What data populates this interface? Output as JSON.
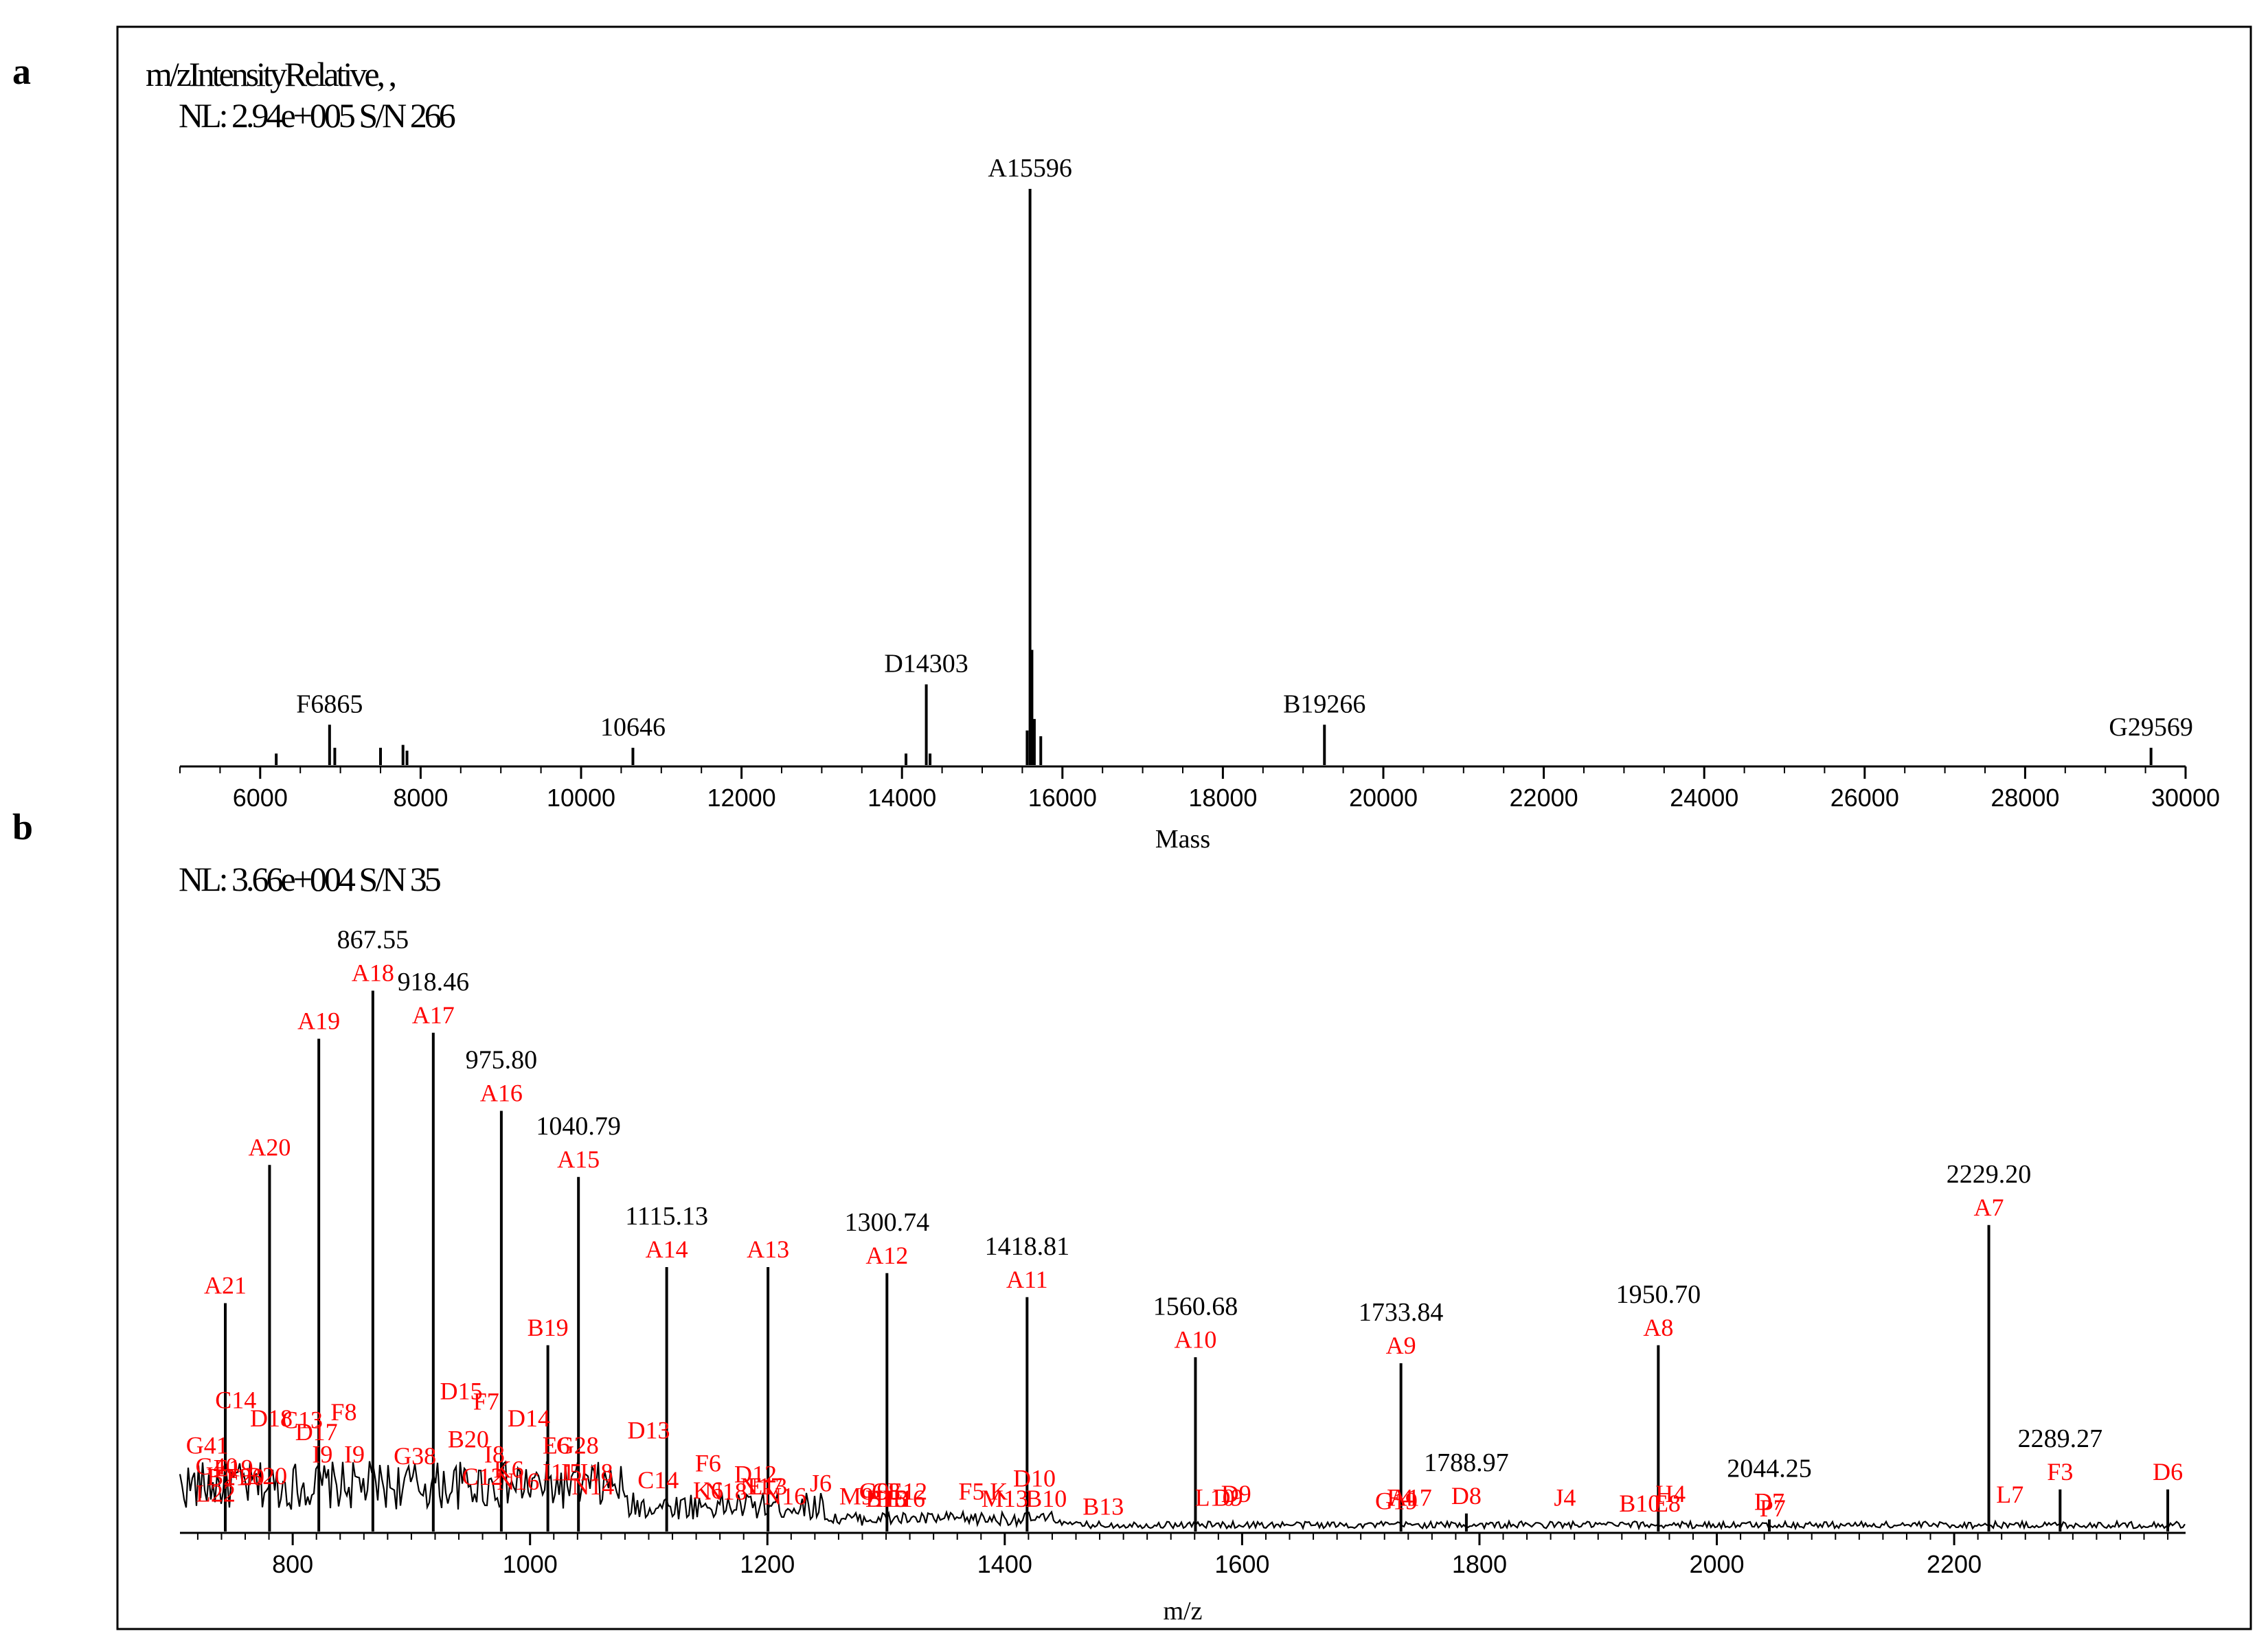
{
  "panel_letters": {
    "a": "a",
    "b": "b"
  },
  "chart_data": [
    {
      "type": "spectrum",
      "panel": "a",
      "header_line1": "m/zIntensityRelative, ,",
      "header_line2": "NL: 2.94e+005  S/N 266",
      "xlabel": "Mass",
      "xlim": [
        5000,
        30000
      ],
      "ylim": [
        0,
        100
      ],
      "x_ticks": [
        6000,
        8000,
        10000,
        12000,
        14000,
        16000,
        18000,
        20000,
        22000,
        24000,
        26000,
        28000,
        30000
      ],
      "peaks": [
        {
          "x": 6200,
          "y": 2
        },
        {
          "x": 6865,
          "y": 7,
          "label": "F6865"
        },
        {
          "x": 6930,
          "y": 3
        },
        {
          "x": 7500,
          "y": 3
        },
        {
          "x": 7780,
          "y": 3.5
        },
        {
          "x": 7830,
          "y": 2.5
        },
        {
          "x": 10646,
          "y": 3,
          "label": "10646"
        },
        {
          "x": 14050,
          "y": 2
        },
        {
          "x": 14303,
          "y": 14,
          "label": "D14303"
        },
        {
          "x": 14350,
          "y": 2
        },
        {
          "x": 15560,
          "y": 6
        },
        {
          "x": 15596,
          "y": 100,
          "label": "A15596"
        },
        {
          "x": 15620,
          "y": 20
        },
        {
          "x": 15650,
          "y": 8
        },
        {
          "x": 15730,
          "y": 5
        },
        {
          "x": 19266,
          "y": 7,
          "label": "B19266"
        },
        {
          "x": 29569,
          "y": 3,
          "label": "G29569"
        }
      ]
    },
    {
      "type": "spectrum",
      "panel": "b",
      "header_line1": "NL: 3.66e+004  S/N 35",
      "xlabel": "m/z",
      "xlim": [
        705,
        2395
      ],
      "ylim": [
        0,
        100
      ],
      "x_ticks": [
        800,
        1000,
        1200,
        1400,
        1600,
        1800,
        2000,
        2200
      ],
      "peaks": [
        {
          "x": 743.2,
          "y": 38,
          "mz": "",
          "ion": "A21"
        },
        {
          "x": 780.5,
          "y": 61,
          "mz": "",
          "ion": "A20"
        },
        {
          "x": 822.0,
          "y": 82,
          "mz": "",
          "ion": "A19"
        },
        {
          "x": 867.55,
          "y": 90,
          "mz": "867.55",
          "ion": "A18"
        },
        {
          "x": 918.46,
          "y": 83,
          "mz": "918.46",
          "ion": "A17"
        },
        {
          "x": 975.8,
          "y": 70,
          "mz": "975.80",
          "ion": "A16"
        },
        {
          "x": 1040.79,
          "y": 59,
          "mz": "1040.79",
          "ion": "A15"
        },
        {
          "x": 1115.13,
          "y": 44,
          "mz": "1115.13",
          "ion": "A14"
        },
        {
          "x": 1200.5,
          "y": 44,
          "mz": "",
          "ion": "A13"
        },
        {
          "x": 1300.74,
          "y": 43,
          "mz": "1300.74",
          "ion": "A12"
        },
        {
          "x": 1418.81,
          "y": 39,
          "mz": "1418.81",
          "ion": "A11"
        },
        {
          "x": 1560.68,
          "y": 29,
          "mz": "1560.68",
          "ion": "A10"
        },
        {
          "x": 1733.84,
          "y": 28,
          "mz": "1733.84",
          "ion": "A9"
        },
        {
          "x": 1950.7,
          "y": 31,
          "mz": "1950.70",
          "ion": "A8"
        },
        {
          "x": 2229.2,
          "y": 51,
          "mz": "2229.20",
          "ion": "A7"
        },
        {
          "x": 1015.0,
          "y": 31,
          "mz": "",
          "ion": "B19"
        },
        {
          "x": 1788.97,
          "y": 3,
          "mz": "1788.97",
          "ion": "D8"
        },
        {
          "x": 2044.25,
          "y": 2,
          "mz": "2044.25",
          "ion": "D7"
        },
        {
          "x": 2289.27,
          "y": 7,
          "mz": "2289.27",
          "ion": "F3"
        },
        {
          "x": 2380.0,
          "y": 7,
          "mz": "",
          "ion": "D6"
        }
      ],
      "minor_annotations": [
        {
          "x": 728,
          "level": 13,
          "text": "G41"
        },
        {
          "x": 735,
          "level": 5,
          "text": "L22"
        },
        {
          "x": 736,
          "level": 9.5,
          "text": "G40"
        },
        {
          "x": 745,
          "level": 7.7,
          "text": "B21"
        },
        {
          "x": 750,
          "level": 9.2,
          "text": "E19"
        },
        {
          "x": 752,
          "level": 20.5,
          "text": "C14"
        },
        {
          "x": 760,
          "level": 7.7,
          "text": "F20"
        },
        {
          "x": 778,
          "level": 7.9,
          "text": "B20"
        },
        {
          "x": 782,
          "level": 17.5,
          "text": "D18"
        },
        {
          "x": 808,
          "level": 17.2,
          "text": "C13"
        },
        {
          "x": 820,
          "level": 15.2,
          "text": "D17"
        },
        {
          "x": 825,
          "level": 11.5,
          "text": "I9"
        },
        {
          "x": 843,
          "level": 18.5,
          "text": "F8"
        },
        {
          "x": 852,
          "level": 11.5,
          "text": "I9"
        },
        {
          "x": 903,
          "level": 11.2,
          "text": "G38"
        },
        {
          "x": 942,
          "level": 22,
          "text": "D15"
        },
        {
          "x": 948,
          "level": 14,
          "text": "B20"
        },
        {
          "x": 963,
          "level": 20.3,
          "text": "F7"
        },
        {
          "x": 970,
          "level": 11.5,
          "text": "I8"
        },
        {
          "x": 960,
          "level": 7.8,
          "text": "C12"
        },
        {
          "x": 982,
          "level": 9,
          "text": "K6"
        },
        {
          "x": 990,
          "level": 7,
          "text": "N16"
        },
        {
          "x": 999,
          "level": 17.5,
          "text": "D14"
        },
        {
          "x": 1022,
          "level": 13,
          "text": "E6"
        },
        {
          "x": 1040,
          "level": 13,
          "text": "G28"
        },
        {
          "x": 1024,
          "level": 8.5,
          "text": "I11"
        },
        {
          "x": 1035,
          "level": 8.5,
          "text": "I5"
        },
        {
          "x": 1056,
          "level": 8.5,
          "text": "I18"
        },
        {
          "x": 1053,
          "level": 6.2,
          "text": "N14"
        },
        {
          "x": 1100,
          "level": 15.5,
          "text": "D13"
        },
        {
          "x": 1108,
          "level": 7.2,
          "text": "C14"
        },
        {
          "x": 1150,
          "level": 10,
          "text": "F6"
        },
        {
          "x": 1150,
          "level": 5.5,
          "text": "K6"
        },
        {
          "x": 1165,
          "level": 5.3,
          "text": "N18"
        },
        {
          "x": 1190,
          "level": 8.2,
          "text": "D12"
        },
        {
          "x": 1195,
          "level": 6.2,
          "text": "N17"
        },
        {
          "x": 1200,
          "level": 6.2,
          "text": "E13"
        },
        {
          "x": 1215,
          "level": 4.5,
          "text": "N16"
        },
        {
          "x": 1245,
          "level": 6.7,
          "text": "J6"
        },
        {
          "x": 1275,
          "level": 4.5,
          "text": "M9"
        },
        {
          "x": 1290,
          "level": 5.3,
          "text": "G9"
        },
        {
          "x": 1300,
          "level": 5.3,
          "text": "C8"
        },
        {
          "x": 1318,
          "level": 5.3,
          "text": "E12"
        },
        {
          "x": 1300,
          "level": 4.1,
          "text": "B15"
        },
        {
          "x": 1305,
          "level": 4.1,
          "text": "I13"
        },
        {
          "x": 1315,
          "level": 4.1,
          "text": "H16"
        },
        {
          "x": 1372,
          "level": 5.3,
          "text": "F5"
        },
        {
          "x": 1395,
          "level": 5.3,
          "text": "K"
        },
        {
          "x": 1400,
          "level": 4.1,
          "text": "M13"
        },
        {
          "x": 1425,
          "level": 7.5,
          "text": "D10"
        },
        {
          "x": 1435,
          "level": 4.1,
          "text": "B10"
        },
        {
          "x": 1483,
          "level": 2.8,
          "text": "B13"
        },
        {
          "x": 1577,
          "level": 4.3,
          "text": "L10"
        },
        {
          "x": 1595,
          "level": 4.9,
          "text": "D9"
        },
        {
          "x": 1588,
          "level": 4.3,
          "text": "D9"
        },
        {
          "x": 1733,
          "level": 4.3,
          "text": "F4"
        },
        {
          "x": 1742,
          "level": 4.3,
          "text": "A17"
        },
        {
          "x": 1730,
          "level": 3.7,
          "text": "G19"
        },
        {
          "x": 1872,
          "level": 4.3,
          "text": "J4"
        },
        {
          "x": 1935,
          "level": 3.3,
          "text": "B10"
        },
        {
          "x": 1961,
          "level": 4.9,
          "text": "H4"
        },
        {
          "x": 1958,
          "level": 3.3,
          "text": "E8"
        },
        {
          "x": 2247,
          "level": 4.8,
          "text": "L7"
        },
        {
          "x": 2047,
          "level": 2.5,
          "text": "P7"
        }
      ]
    }
  ]
}
